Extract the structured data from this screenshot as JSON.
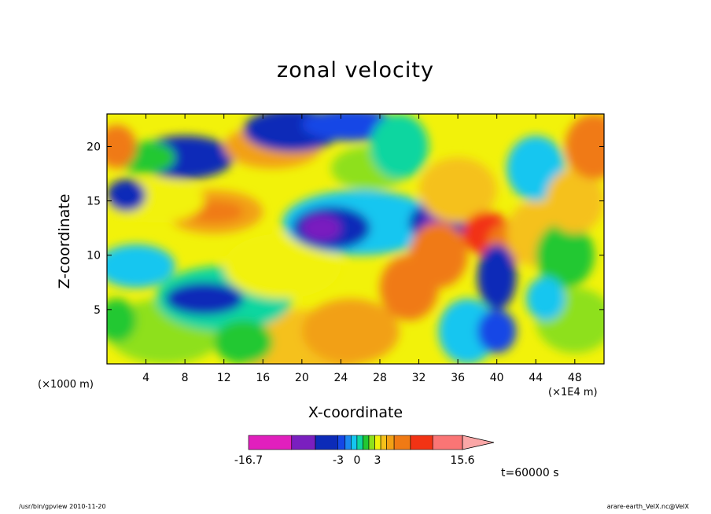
{
  "chart_data": {
    "type": "heatmap",
    "title": "zonal velocity",
    "xlabel": "X-coordinate",
    "ylabel": "Z-coordinate",
    "x_unit": "(×1E4 m)",
    "y_unit": "(×1000 m)",
    "xlim": [
      0,
      51
    ],
    "ylim": [
      0,
      23
    ],
    "x_ticks": [
      4,
      8,
      12,
      16,
      20,
      24,
      28,
      32,
      36,
      40,
      44,
      48
    ],
    "y_ticks": [
      5,
      10,
      15,
      20
    ],
    "colorbar": {
      "min": -16.7,
      "max": 15.6,
      "tick_labels": [
        "-16.7",
        "-3",
        "0",
        "3",
        "15.6"
      ],
      "colors": [
        "#e11fbd",
        "#7a1fbf",
        "#0c2bb8",
        "#1447e6",
        "#1b88f0",
        "#14c6f0",
        "#0fd6a0",
        "#22c832",
        "#8ee01c",
        "#f2f20a",
        "#f5c11a",
        "#f2a015",
        "#f07a14",
        "#f23314",
        "#fa7575",
        "#fba7a7"
      ]
    },
    "grid": false
  },
  "annotations": {
    "time": "t=60000 s"
  },
  "footer": {
    "left": "/usr/bin/gpview  2010-11-20",
    "right": "arare-earth_VelX.nc@VelX"
  }
}
